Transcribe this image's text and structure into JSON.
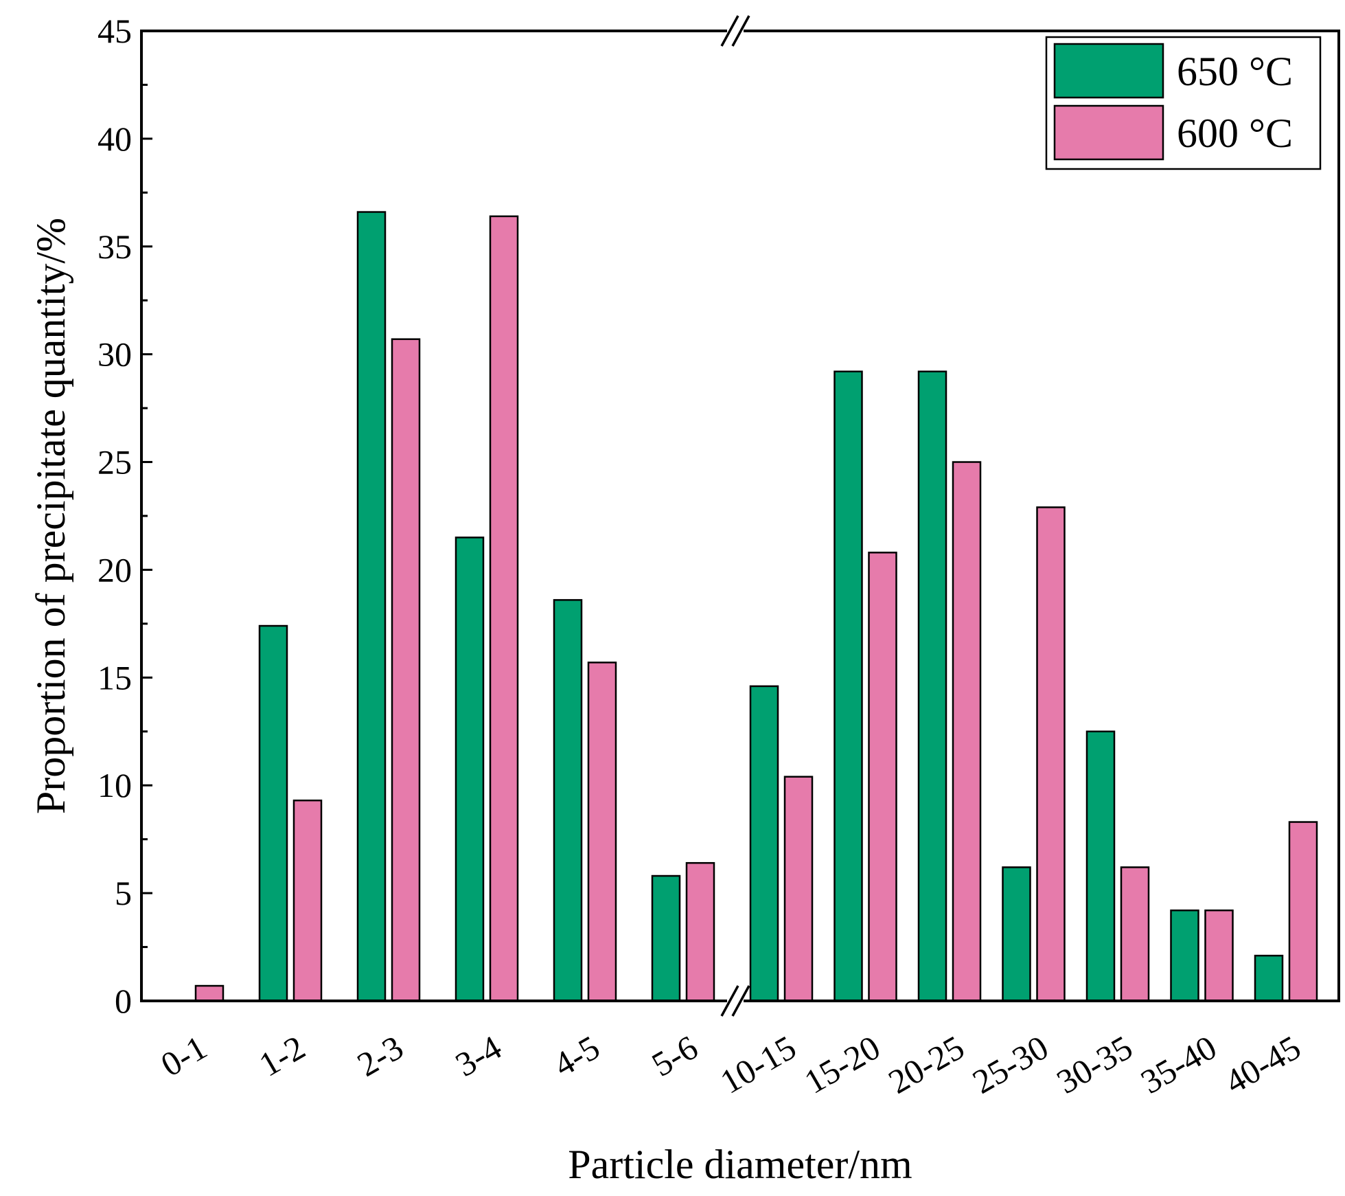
{
  "chart_data": {
    "type": "bar",
    "title": "",
    "xlabel": "Particle diameter/nm",
    "ylabel": "Proportion of precipitate quantity/%",
    "ylim": [
      0,
      45
    ],
    "yticks": [
      0,
      5,
      10,
      15,
      20,
      25,
      30,
      35,
      40,
      45
    ],
    "ytick_labels": [
      "0",
      "5",
      "10",
      "15",
      "20",
      "25",
      "30",
      "35",
      "40",
      "45"
    ],
    "grid": false,
    "axis_break": "between 5-6 and 10-15",
    "legend_position": "top-right",
    "categories": [
      "0-1",
      "1-2",
      "2-3",
      "3-4",
      "4-5",
      "5-6",
      "10-15",
      "15-20",
      "20-25",
      "25-30",
      "30-35",
      "35-40",
      "40-45"
    ],
    "series": [
      {
        "name": "650 °C",
        "color": "#00a070",
        "values": [
          0,
          17.4,
          36.6,
          21.5,
          18.6,
          5.8,
          14.6,
          29.2,
          29.2,
          6.2,
          12.5,
          4.2,
          2.1
        ]
      },
      {
        "name": "600 °C",
        "color": "#e67bab",
        "values": [
          0.7,
          9.3,
          30.7,
          36.4,
          15.7,
          6.4,
          10.4,
          20.8,
          25.0,
          22.9,
          6.2,
          4.2,
          8.3
        ]
      }
    ]
  }
}
